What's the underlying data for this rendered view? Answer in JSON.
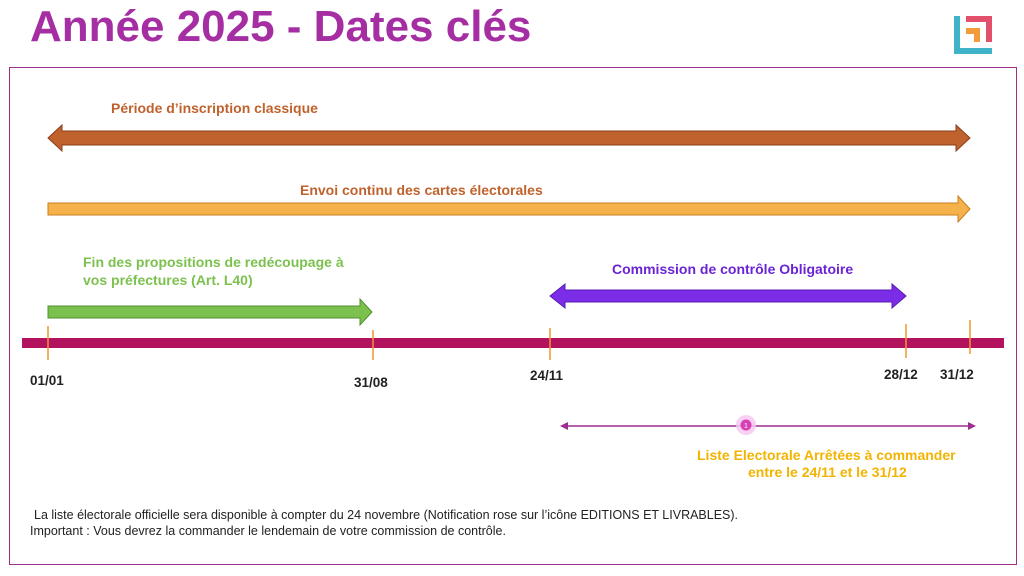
{
  "title": "Année 2025 - Dates clés",
  "colors": {
    "accent": "#a52ea3",
    "timeline": "#b3135e",
    "inscription": "#c0622d",
    "envoi": "#f5b24b",
    "redecoupage": "#7cc14f",
    "commission": "#7a2ce6",
    "liste": "#9e2f8f",
    "liste_text": "#f2b400",
    "tick": "#f0962f"
  },
  "periods": {
    "inscription": "Période d’inscription classique",
    "envoi": "Envoi continu des cartes électorales",
    "redecoupage_line1": "Fin des propositions de redécoupage à",
    "redecoupage_line2": "vos préfectures (Art. L40)",
    "commission": "Commission de contrôle Obligatoire",
    "liste_line1": "Liste Electorale Arrêtées à commander",
    "liste_line2": "entre le 24/11 et le 31/12"
  },
  "dates": [
    "01/01",
    "31/08",
    "24/11",
    "28/12",
    "31/12"
  ],
  "badge": "1",
  "notes": {
    "line1": "La liste électorale officielle sera disponible à compter du 24 novembre (Notification rose sur l’icône EDITIONS ET LIVRABLES).",
    "line2": "Important : Vous devrez la commander le lendemain de votre commission de contrôle."
  }
}
